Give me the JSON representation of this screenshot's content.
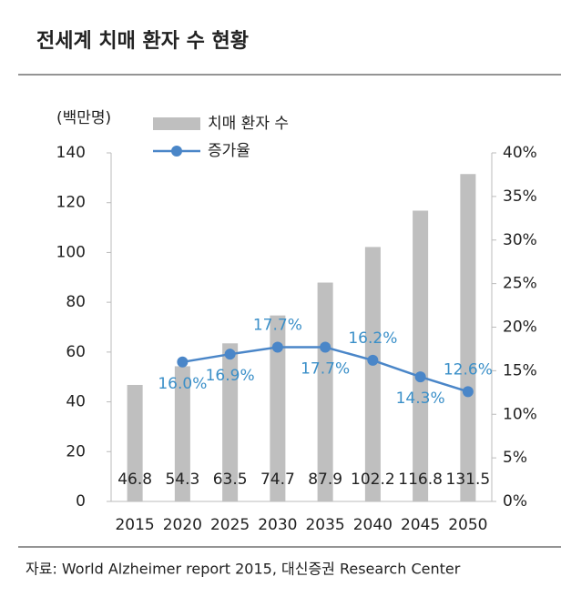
{
  "chart_data": {
    "type": "bar-line",
    "title": "전세계 치매 환자 수 현황",
    "y_label": "(백만명)",
    "source": "자료: World Alzheimer report 2015, 대신증권 Research Center",
    "categories": [
      "2015",
      "2020",
      "2025",
      "2030",
      "2035",
      "2040",
      "2045",
      "2050"
    ],
    "series": [
      {
        "name": "치매 환자 수",
        "type": "bar",
        "color": "#bfbfbf",
        "values": [
          46.8,
          54.3,
          63.5,
          74.7,
          87.9,
          102.2,
          116.8,
          131.5
        ]
      },
      {
        "name": "증가율",
        "type": "line",
        "axis": "y2",
        "color": "#4a86c8",
        "values": [
          null,
          16.0,
          16.9,
          17.7,
          17.7,
          16.2,
          14.3,
          12.6
        ],
        "value_labels": [
          null,
          "16.0%",
          "16.9%",
          "17.7%",
          "17.7%",
          "16.2%",
          "14.3%",
          "12.6%"
        ]
      }
    ],
    "ylim": [
      0,
      140
    ],
    "yticks": [
      0,
      20,
      40,
      60,
      80,
      100,
      120,
      140
    ],
    "y2lim": [
      0,
      40
    ],
    "y2ticks": [
      {
        "value": 0,
        "label": "0%"
      },
      {
        "value": 5,
        "label": "5%"
      },
      {
        "value": 10,
        "label": "10%"
      },
      {
        "value": 15,
        "label": "15%"
      },
      {
        "value": 20,
        "label": "20%"
      },
      {
        "value": 25,
        "label": "25%"
      },
      {
        "value": 30,
        "label": "30%"
      },
      {
        "value": 35,
        "label": "35%"
      },
      {
        "value": 40,
        "label": "40%"
      }
    ]
  }
}
